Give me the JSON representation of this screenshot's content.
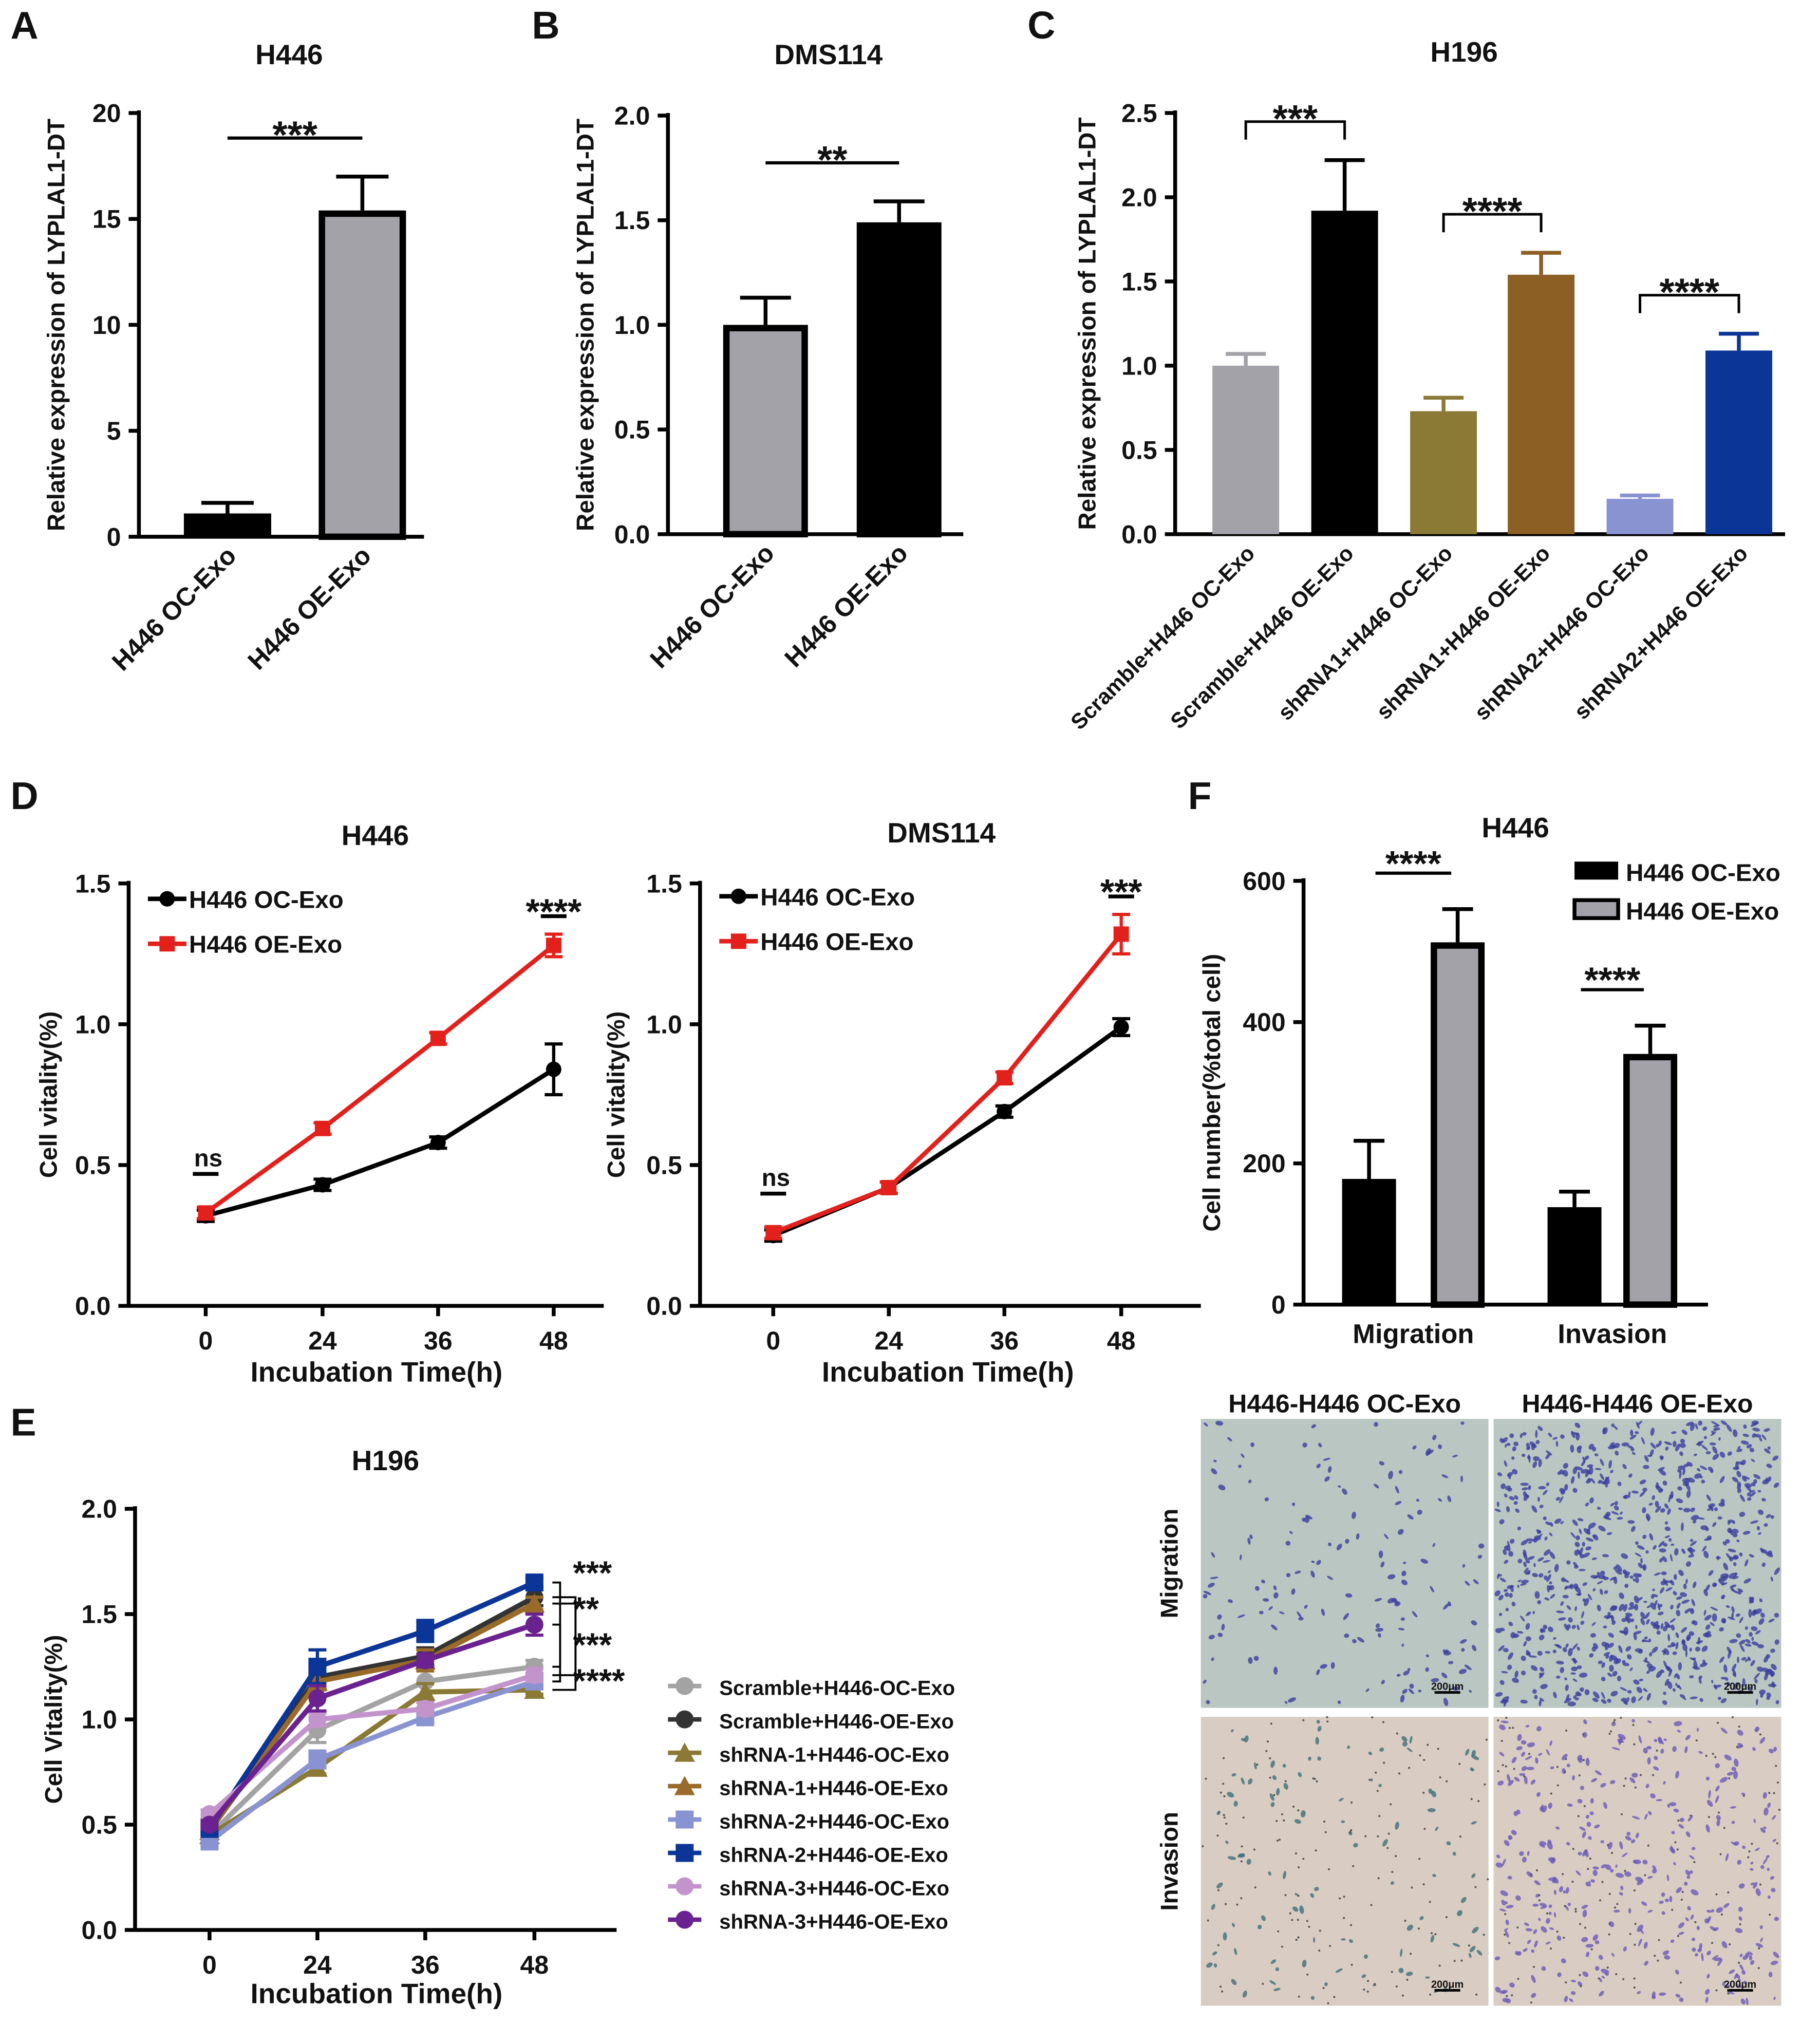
{
  "panels": [
    "A",
    "B",
    "C",
    "D",
    "E",
    "F"
  ],
  "chart_data": [
    {
      "panel": "A",
      "type": "bar",
      "title": "H446",
      "ylabel": "Relative expression of LYPLAL1-DT",
      "categories": [
        "H446 OC-Exo",
        "H446 OE-Exo"
      ],
      "values": [
        1.1,
        15.4
      ],
      "error_upper": [
        1.6,
        17.0
      ],
      "ylim": [
        0,
        20
      ],
      "yticks": [
        "0",
        "5",
        "10",
        "15",
        "20"
      ],
      "colors": [
        "#000000",
        "#a2a2a8"
      ],
      "significance": [
        {
          "groups": [
            0,
            1
          ],
          "label": "***"
        }
      ]
    },
    {
      "panel": "B",
      "type": "bar",
      "title": "DMS114",
      "ylabel": "Relative expression of LYPLAL1-DT",
      "categories": [
        "H446 OC-Exo",
        "H446 OE-Exo"
      ],
      "values": [
        1.0,
        1.49
      ],
      "error_upper": [
        1.13,
        1.59
      ],
      "ylim": [
        0,
        2.0
      ],
      "yticks": [
        "0.0",
        "0.5",
        "1.0",
        "1.5",
        "2.0"
      ],
      "colors": [
        "#a2a2a8",
        "#000000"
      ],
      "significance": [
        {
          "groups": [
            0,
            1
          ],
          "label": "**"
        }
      ]
    },
    {
      "panel": "C",
      "type": "bar",
      "title": "H196",
      "ylabel": "Relative expression of LYPLAL1-DT",
      "categories": [
        "Scramble+H446 OC-Exo",
        "Scramble+H446 OE-Exo",
        "shRNA1+H446 OC-Exo",
        "shRNA1+H446 OE-Exo",
        "shRNA2+H446 OC-Exo",
        "shRNA2+H446 OE-Exo"
      ],
      "values": [
        1.0,
        1.92,
        0.73,
        1.54,
        0.21,
        1.09
      ],
      "error_upper": [
        1.07,
        2.22,
        0.81,
        1.67,
        0.23,
        1.19
      ],
      "ylim": [
        0,
        2.5
      ],
      "yticks": [
        "0.0",
        "0.5",
        "1.0",
        "1.5",
        "2.0",
        "2.5"
      ],
      "colors": [
        "#a2a2a8",
        "#000000",
        "#8b7a36",
        "#8c5f24",
        "#8a93d2",
        "#0b3596"
      ],
      "significance": [
        {
          "groups": [
            0,
            1
          ],
          "label": "***"
        },
        {
          "groups": [
            2,
            3
          ],
          "label": "****"
        },
        {
          "groups": [
            4,
            5
          ],
          "label": "****"
        }
      ]
    },
    {
      "panel": "D",
      "type": "line",
      "title": "H446",
      "xlabel": "Incubation Time(h)",
      "ylabel": "Cell vitality(%)",
      "x": [
        "0",
        "24",
        "36",
        "48"
      ],
      "ylim": [
        0,
        1.5
      ],
      "yticks": [
        "0.0",
        "0.5",
        "1.0",
        "1.5"
      ],
      "legend": "top-left",
      "series": [
        {
          "name": "H446 OC-Exo",
          "color": "#000000",
          "marker": "circle",
          "values": [
            0.32,
            0.43,
            0.58,
            0.84
          ],
          "errors": [
            0.02,
            0.02,
            0.02,
            0.09
          ]
        },
        {
          "name": "H446 OE-Exo",
          "color": "#e3211c",
          "marker": "square",
          "values": [
            0.33,
            0.63,
            0.95,
            1.28
          ],
          "errors": [
            0.02,
            0.02,
            0.02,
            0.04
          ]
        }
      ],
      "annotations": [
        {
          "x_index": 0,
          "label": "ns"
        },
        {
          "x_index": 3,
          "label": "****"
        }
      ]
    },
    {
      "panel": "D",
      "type": "line",
      "title": "DMS114",
      "xlabel": "Incubation Time(h)",
      "ylabel": "Cell vitality(%)",
      "x": [
        "0",
        "24",
        "36",
        "48"
      ],
      "ylim": [
        0,
        1.5
      ],
      "yticks": [
        "0.0",
        "0.5",
        "1.0",
        "1.5"
      ],
      "legend": "top-left",
      "series": [
        {
          "name": "H446 OC-Exo",
          "color": "#000000",
          "marker": "circle",
          "values": [
            0.25,
            0.42,
            0.69,
            0.99
          ],
          "errors": [
            0.02,
            0.02,
            0.02,
            0.03
          ]
        },
        {
          "name": "H446 OE-Exo",
          "color": "#e3211c",
          "marker": "square",
          "values": [
            0.26,
            0.42,
            0.81,
            1.32
          ],
          "errors": [
            0.02,
            0.02,
            0.02,
            0.07
          ]
        }
      ],
      "annotations": [
        {
          "x_index": 0,
          "label": "ns"
        },
        {
          "x_index": 3,
          "label": "***"
        }
      ]
    },
    {
      "panel": "E",
      "type": "line",
      "title": "H196",
      "xlabel": "Incubation Time(h)",
      "ylabel": "Cell Vitality(%)",
      "x": [
        "0",
        "24",
        "36",
        "48"
      ],
      "ylim": [
        0,
        2.0
      ],
      "yticks": [
        "0.0",
        "0.5",
        "1.0",
        "1.5",
        "2.0"
      ],
      "legend": "right",
      "series": [
        {
          "name": "Scramble+H446-OC-Exo",
          "color": "#a3a3a3",
          "marker": "circle",
          "values": [
            0.45,
            0.95,
            1.18,
            1.25
          ],
          "errors": [
            0.02,
            0.06,
            0.1,
            0.03
          ]
        },
        {
          "name": "Scramble+H446-OE-Exo",
          "color": "#333333",
          "marker": "circle",
          "values": [
            0.48,
            1.2,
            1.3,
            1.58
          ],
          "errors": [
            0.02,
            0.05,
            0.04,
            0.04
          ]
        },
        {
          "name": "shRNA-1+H446-OC-Exo",
          "color": "#8b7a36",
          "marker": "triangle",
          "values": [
            0.45,
            0.77,
            1.13,
            1.14
          ],
          "errors": [
            0.02,
            0.03,
            0.04,
            0.02
          ]
        },
        {
          "name": "shRNA-1+H446-OE-Exo",
          "color": "#9a6a2a",
          "marker": "triangle",
          "values": [
            0.47,
            1.18,
            1.28,
            1.55
          ],
          "errors": [
            0.02,
            0.04,
            0.05,
            0.03
          ]
        },
        {
          "name": "shRNA-2+H446-OC-Exo",
          "color": "#8a93d2",
          "marker": "square",
          "values": [
            0.42,
            0.81,
            1.01,
            1.18
          ],
          "errors": [
            0.02,
            0.04,
            0.03,
            0.03
          ]
        },
        {
          "name": "shRNA-2+H446-OE-Exo",
          "color": "#0b3596",
          "marker": "square",
          "values": [
            0.48,
            1.25,
            1.42,
            1.65
          ],
          "errors": [
            0.02,
            0.08,
            0.05,
            0.02
          ]
        },
        {
          "name": "shRNA-3+H446-OC-Exo",
          "color": "#c394cc",
          "marker": "circle",
          "values": [
            0.55,
            1.0,
            1.05,
            1.21
          ],
          "errors": [
            0.02,
            0.03,
            0.03,
            0.03
          ]
        },
        {
          "name": "shRNA-3+H446-OE-Exo",
          "color": "#6a2290",
          "marker": "circle",
          "values": [
            0.5,
            1.1,
            1.28,
            1.45
          ],
          "errors": [
            0.02,
            0.06,
            0.03,
            0.05
          ]
        }
      ],
      "significance": [
        {
          "pair": [
            5,
            0
          ],
          "label": "***"
        },
        {
          "pair": [
            1,
            2
          ],
          "label": "**"
        },
        {
          "pair": [
            7,
            4
          ],
          "label": "***"
        },
        {
          "pair": [
            3,
            6
          ],
          "label": "****"
        }
      ]
    },
    {
      "panel": "F",
      "type": "bar",
      "title": "H446",
      "ylabel": "Cell number(%total cell)",
      "categories": [
        "Migration",
        "Invasion"
      ],
      "ylim": [
        0,
        600
      ],
      "yticks": [
        "0",
        "200",
        "400",
        "600"
      ],
      "legend": "top-right",
      "series": [
        {
          "name": "H446 OC-Exo",
          "color": "#000000",
          "values": [
            178,
            138
          ],
          "error_upper": [
            232,
            160
          ]
        },
        {
          "name": "H446 OE-Exo",
          "color": "#a2a2a8",
          "values": [
            513,
            355
          ],
          "error_upper": [
            560,
            395
          ]
        }
      ],
      "significance": [
        {
          "category": 0,
          "label": "****"
        },
        {
          "category": 1,
          "label": "****"
        }
      ]
    }
  ],
  "micrographs": {
    "columns": [
      "H446-H446 OC-Exo",
      "H446-H446 OE-Exo"
    ],
    "rows": [
      "Migration",
      "Invasion"
    ],
    "scale_bar": "200μm",
    "colors": {
      "migration_bg": "#b9c6c2",
      "invasion_bg": "#d9ccc2",
      "stain": "#3b3f9e",
      "invasion_stain": "#6a5ab8"
    }
  }
}
